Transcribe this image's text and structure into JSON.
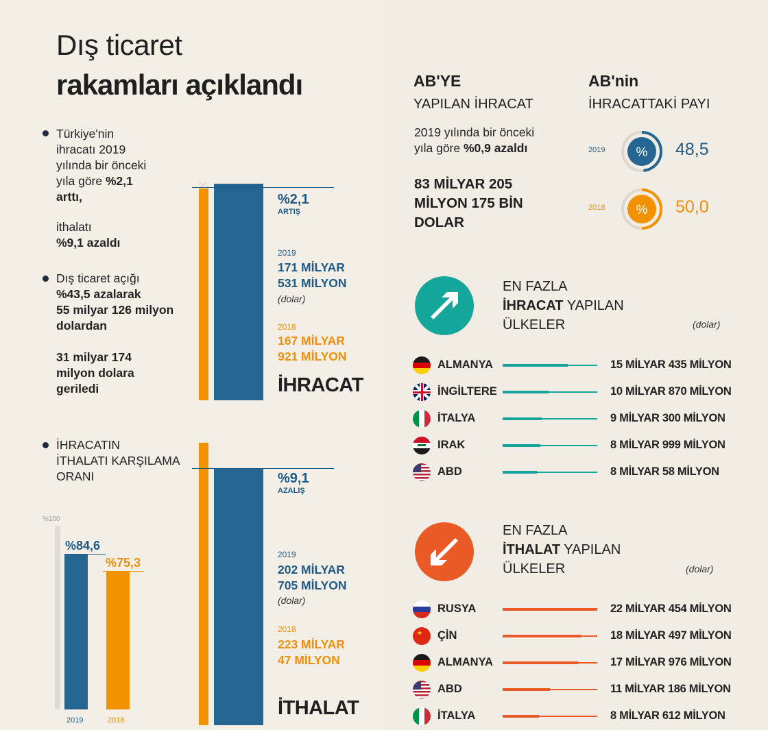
{
  "title": {
    "line1": "Dış ticaret",
    "line2": "rakamları açıklandı"
  },
  "left_text": {
    "b1_l1": "Türkiye'nin",
    "b1_l2": "ihracatı 2019",
    "b1_l3": "yılında bir önceki",
    "b1_l4a": "yıla göre ",
    "b1_l4b": "%2,1",
    "b1_l5": "arttı,",
    "b1_l6": "ithalatı",
    "b1_l7": "%9,1 azaldı",
    "b2_l1": "Dış ticaret açığı",
    "b2_l2": "%43,5 azalarak",
    "b2_l3": "55 milyar 126 milyon",
    "b2_l4": "dolardan",
    "b2_l5": "31 milyar 174",
    "b2_l6": "milyon dolara",
    "b2_l7": "geriledi",
    "b3_l1": "İHRACATIN",
    "b3_l2": "İTHALATI KARŞILAMA",
    "b3_l3": "ORANI"
  },
  "export_block": {
    "change": "%2,1",
    "change_label": "ARTIŞ",
    "year_2019": "2019",
    "val_2019_l1": "171 MİLYAR",
    "val_2019_l2": "531 MİLYON",
    "unit": "(dolar)",
    "year_2018": "2018",
    "val_2018_l1": "167 MİLYAR",
    "val_2018_l2": "921 MİLYON",
    "label": "İHRACAT"
  },
  "import_block": {
    "change": "%9,1",
    "change_label": "AZALIŞ",
    "year_2019": "2019",
    "val_2019_l1": "202 MİLYAR",
    "val_2019_l2": "705 MİLYON",
    "unit": "(dolar)",
    "year_2018": "2018",
    "val_2018_l1": "223 MİLYAR",
    "val_2018_l2": "47 MİLYON",
    "label": "İTHALAT"
  },
  "coverage": {
    "max_label": "%100",
    "v2019": "%84,6",
    "v2018": "%75,3",
    "y2019": "2019",
    "y2018": "2018"
  },
  "eu_export": {
    "h1": "AB'YE",
    "h2": "YAPILAN İHRACAT",
    "d1": "2019 yılında bir önceki",
    "d2a": "yıla göre ",
    "d2b": "%0,9 azaldı",
    "v1": "83 MİLYAR 205",
    "v2": "MİLYON 175 BİN",
    "v3": "DOLAR"
  },
  "eu_share": {
    "h1": "AB'nin",
    "h2": "İHRACATTAKİ PAYI",
    "y2019": "2019",
    "v2019": "48,5",
    "y2018": "2018",
    "v2018": "50,0",
    "symbol": "%"
  },
  "top_export": {
    "t1": "EN FAZLA",
    "t2a": "İHRACAT",
    "t2b": " YAPILAN",
    "t3": "ÜLKELER",
    "unit": "(dolar)"
  },
  "top_import": {
    "t1": "EN FAZLA",
    "t2a": "İTHALAT",
    "t2b": " YAPILAN",
    "t3": "ÜLKELER",
    "unit": "(dolar)"
  },
  "colors": {
    "blue": "#256591",
    "orange": "#f39200",
    "teal": "#14a69b",
    "red": "#ea5a26",
    "bg": "#f3efe6"
  },
  "chart_data": [
    {
      "type": "bar",
      "title": "İHRACAT",
      "categories": [
        "2018",
        "2019"
      ],
      "values": [
        167.921,
        171.531
      ],
      "ylabel": "(dolar)"
    },
    {
      "type": "bar",
      "title": "İTHALAT",
      "categories": [
        "2018",
        "2019"
      ],
      "values": [
        223.047,
        202.705
      ],
      "ylabel": "(dolar)"
    },
    {
      "type": "bar",
      "title": "İHRACATIN İTHALATI KARŞILAMA ORANI",
      "categories": [
        "2019",
        "2018"
      ],
      "values": [
        84.6,
        75.3
      ],
      "ylim": [
        0,
        100
      ]
    },
    {
      "type": "bar",
      "title": "AB'nin İHRACATTAKİ PAYI",
      "categories": [
        "2019",
        "2018"
      ],
      "values": [
        48.5,
        50.0
      ],
      "ylim": [
        0,
        100
      ]
    },
    {
      "type": "bar",
      "title": "EN FAZLA İHRACAT YAPILAN ÜLKELER",
      "categories": [
        "ALMANYA",
        "İNGİLTERE",
        "İTALYA",
        "IRAK",
        "ABD"
      ],
      "values": [
        15.435,
        10.87,
        9.3,
        8.999,
        8.058
      ],
      "labels": [
        "15 MİLYAR 435 MİLYON",
        "10 MİLYAR 870 MİLYON",
        "9 MİLYAR 300 MİLYON",
        "8 MİLYAR 999 MİLYON",
        "8 MİLYAR 58 MİLYON"
      ]
    },
    {
      "type": "bar",
      "title": "EN FAZLA İTHALAT YAPILAN ÜLKELER",
      "categories": [
        "RUSYA",
        "ÇİN",
        "ALMANYA",
        "ABD",
        "İTALYA"
      ],
      "values": [
        22.454,
        18.497,
        17.976,
        11.186,
        8.612
      ],
      "labels": [
        "22 MİLYAR 454 MİLYON",
        "18 MİLYAR 497 MİLYON",
        "17 MİLYAR 976 MİLYON",
        "11 MİLYAR 186 MİLYON",
        "8 MİLYAR 612 MİLYON"
      ]
    }
  ]
}
